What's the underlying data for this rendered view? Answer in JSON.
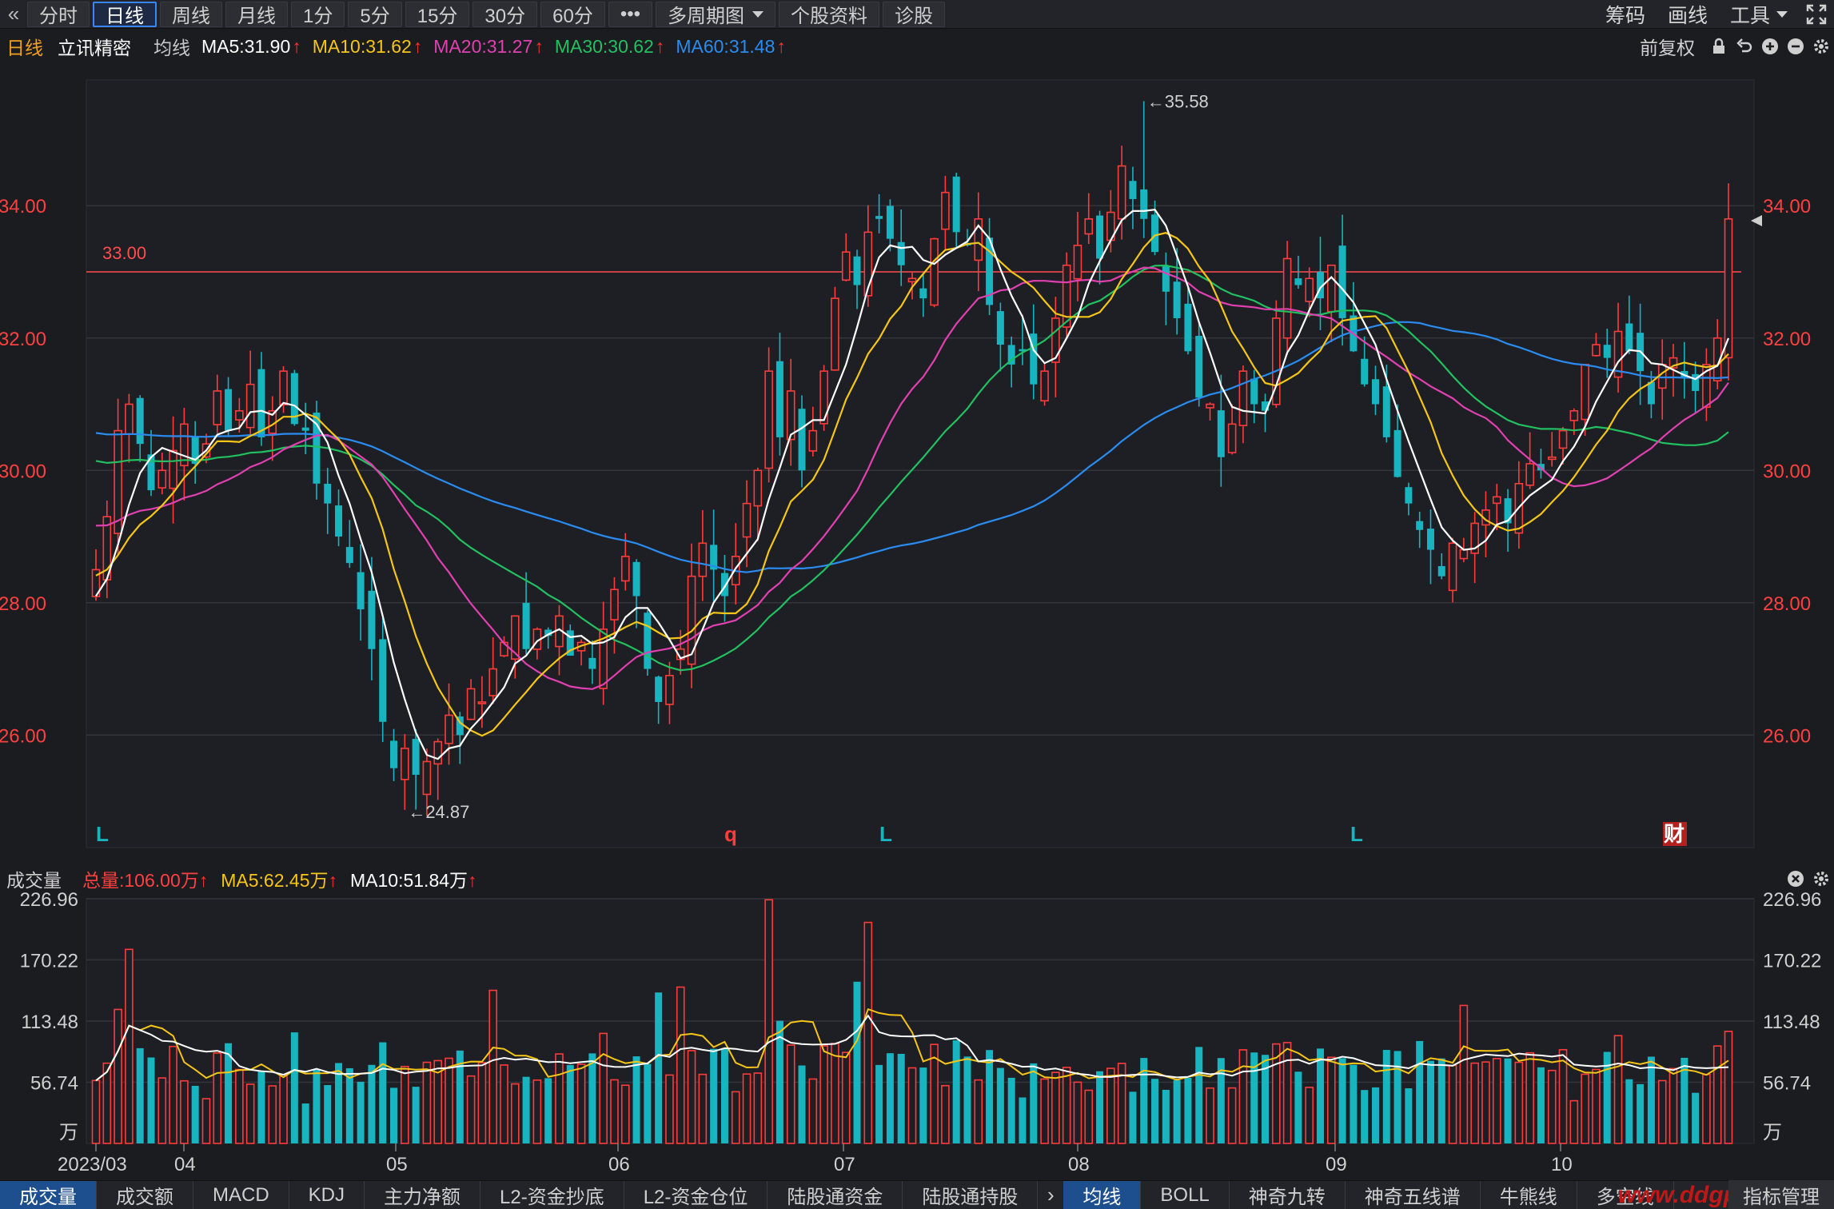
{
  "toolbar": {
    "back_icon": "double-chevron-left-icon",
    "buttons": [
      {
        "label": "分时",
        "active": false
      },
      {
        "label": "日线",
        "active": true
      },
      {
        "label": "周线",
        "active": false
      },
      {
        "label": "月线",
        "active": false
      },
      {
        "label": "1分",
        "active": false
      },
      {
        "label": "5分",
        "active": false
      },
      {
        "label": "15分",
        "active": false
      },
      {
        "label": "30分",
        "active": false
      },
      {
        "label": "60分",
        "active": false
      },
      {
        "label": "•••",
        "active": false
      }
    ],
    "multi_period": "多周期图",
    "stock_info": "个股资料",
    "diagnose": "诊股",
    "right": {
      "chips": "筹码",
      "draw": "画线",
      "tools": "工具"
    }
  },
  "legend": {
    "period": "日线",
    "stock_name": "立讯精密",
    "ma_label": "均线",
    "ma5": "MA5:31.90",
    "ma10": "MA10:31.62",
    "ma20": "MA20:31.27",
    "ma30": "MA30:30.62",
    "ma60": "MA60:31.48",
    "arrow": "↑",
    "adjust": "前复权"
  },
  "colors": {
    "up": "#ff3b3b",
    "down": "#18b4c0",
    "ma5": "#ffffff",
    "ma10": "#f5c518",
    "ma20": "#e040b0",
    "ma30": "#22c060",
    "ma60": "#2a8cf0",
    "axis_text": "#ff4040",
    "grid": "#34353b"
  },
  "chart_data": [
    {
      "type": "candlestick",
      "name": "立讯精密 日线",
      "ylim": [
        24.3,
        35.9
      ],
      "y_ticks": [
        "34.00",
        "32.00",
        "30.00",
        "28.00",
        "26.00"
      ],
      "y_tick_values": [
        34,
        32,
        30,
        28,
        26
      ],
      "reference_line": {
        "value": 33.0,
        "label": "33.00"
      },
      "high_label": "←35.58",
      "low_label": "←24.87",
      "markers": [
        {
          "label": "L",
          "color": "#18b4c0"
        },
        {
          "label": "q",
          "color": "#ff3b3b"
        },
        {
          "label": "L",
          "color": "#18b4c0"
        },
        {
          "label": "L",
          "color": "#18b4c0"
        },
        {
          "label": "财",
          "color": "#ffffff"
        }
      ],
      "closes": [
        28.5,
        29.3,
        30.6,
        31.0,
        30.4,
        29.7,
        30.0,
        30.3,
        30.7,
        30.1,
        30.4,
        31.2,
        30.6,
        30.9,
        31.3,
        30.5,
        30.9,
        31.5,
        30.7,
        30.6,
        29.8,
        29.5,
        29.0,
        28.6,
        27.9,
        27.3,
        26.2,
        25.5,
        25.8,
        25.4,
        25.6,
        25.9,
        26.3,
        26.0,
        26.7,
        26.5,
        27.0,
        27.4,
        27.8,
        27.3,
        27.6,
        27.5,
        27.8,
        27.2,
        27.4,
        27.0,
        27.6,
        28.2,
        28.7,
        28.1,
        27.0,
        26.5,
        26.9,
        27.3,
        28.4,
        28.9,
        28.5,
        28.1,
        28.7,
        29.5,
        30.0,
        31.5,
        30.5,
        31.2,
        30.0,
        30.6,
        31.5,
        32.6,
        33.3,
        32.8,
        33.6,
        33.8,
        33.5,
        33.1,
        32.9,
        32.6,
        33.5,
        34.2,
        33.6,
        33.4,
        33.8,
        32.5,
        31.9,
        31.6,
        31.8,
        31.3,
        31.5,
        32.3,
        33.1,
        33.4,
        33.8,
        33.2,
        33.9,
        34.6,
        34.1,
        33.8,
        33.3,
        32.7,
        32.3,
        31.8,
        31.1,
        31.0,
        30.2,
        30.7,
        31.5,
        31.0,
        30.9,
        32.3,
        33.2,
        32.8,
        32.9,
        32.6,
        33.1,
        32.3,
        31.8,
        31.3,
        31.0,
        30.5,
        29.9,
        29.5,
        29.1,
        28.8,
        28.4,
        28.9,
        28.8,
        29.2,
        29.4,
        29.6,
        29.2,
        29.8,
        30.1,
        30.0,
        30.2,
        30.6,
        30.9,
        31.6,
        31.9,
        31.7,
        32.1,
        31.8,
        31.5,
        31.0,
        31.6,
        31.7,
        31.4,
        31.2,
        31.6,
        32.0,
        33.8
      ],
      "dates_axis": [
        "2023/03",
        "04",
        "05",
        "06",
        "07",
        "08",
        "09",
        "10"
      ]
    },
    {
      "type": "bar",
      "name": "成交量",
      "unit": "万",
      "ylim": [
        0,
        226.96
      ],
      "y_ticks": [
        "226.96",
        "170.22",
        "113.48",
        "56.74",
        "万"
      ],
      "x_ticks": [
        "2023/03",
        "04",
        "05",
        "06",
        "07",
        "08",
        "09",
        "10"
      ],
      "legend": {
        "name": "成交量",
        "total": "总量:106.00万",
        "ma5": "MA5:62.45万",
        "ma10": "MA10:51.84万"
      }
    }
  ],
  "bottom_tabs_left": [
    "成交量",
    "成交额",
    "MACD",
    "KDJ",
    "主力净额",
    "L2-资金抄底",
    "L2-资金仓位",
    "陆股通资金",
    "陆股通持股"
  ],
  "bottom_tabs_right": [
    "均线",
    "BOLL",
    "神奇九转",
    "神奇五线谱",
    "牛熊线",
    "多空线"
  ],
  "bottom_end": "指标管理",
  "watermark": "www.ddgp"
}
